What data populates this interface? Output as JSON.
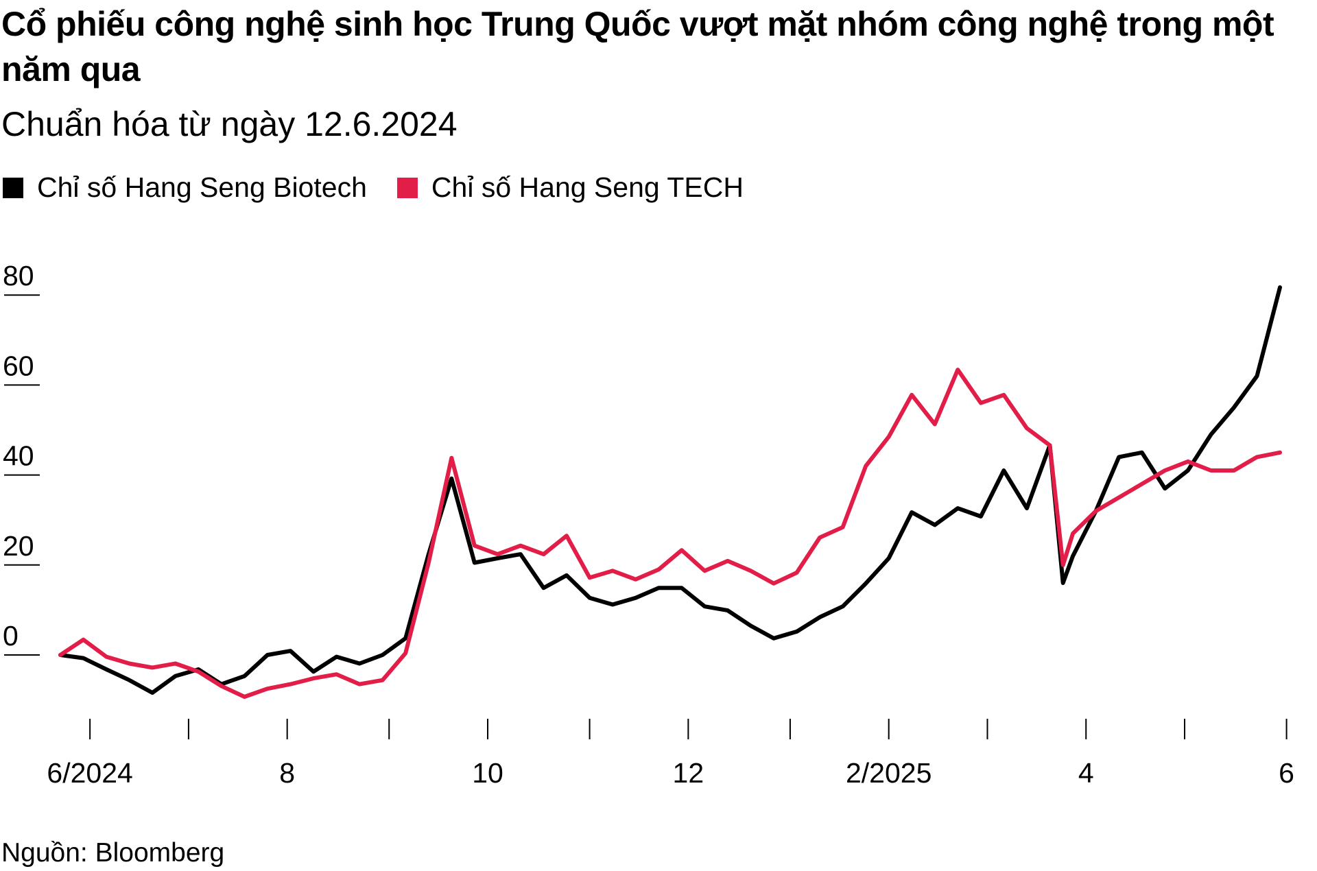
{
  "title": "Cổ phiếu công nghệ sinh học Trung Quốc vượt mặt nhóm công nghệ trong một năm qua",
  "subtitle": "Chuẩn hóa từ ngày 12.6.2024",
  "source": "Nguồn: Bloomberg",
  "chart_data": {
    "type": "line",
    "title": "Cổ phiếu công nghệ sinh học Trung Quốc vượt mặt nhóm công nghệ trong một năm qua",
    "subtitle": "Chuẩn hóa từ ngày 12.6.2024",
    "xlabel": "",
    "ylabel": "",
    "ylim": [
      -10,
      82
    ],
    "yticks": [
      0,
      20,
      40,
      60,
      80
    ],
    "xlim": [
      "2024-06-12",
      "2025-06-18"
    ],
    "xticks": [
      {
        "date": "2024-06-21",
        "label": "6/2024"
      },
      {
        "date": "2024-07-21",
        "label": ""
      },
      {
        "date": "2024-08-20",
        "label": "8"
      },
      {
        "date": "2024-09-20",
        "label": ""
      },
      {
        "date": "2024-10-20",
        "label": "10"
      },
      {
        "date": "2024-11-20",
        "label": ""
      },
      {
        "date": "2024-12-20",
        "label": "12"
      },
      {
        "date": "2025-01-20",
        "label": ""
      },
      {
        "date": "2025-02-19",
        "label": "2/2025"
      },
      {
        "date": "2025-03-21",
        "label": ""
      },
      {
        "date": "2025-04-20",
        "label": "4"
      },
      {
        "date": "2025-05-20",
        "label": ""
      },
      {
        "date": "2025-06-20",
        "label": "6"
      }
    ],
    "grid": false,
    "legend_position": "top-left",
    "x": [
      "2024-06-12",
      "2024-06-19",
      "2024-06-26",
      "2024-07-03",
      "2024-07-10",
      "2024-07-17",
      "2024-07-24",
      "2024-07-31",
      "2024-08-07",
      "2024-08-14",
      "2024-08-21",
      "2024-08-28",
      "2024-09-04",
      "2024-09-11",
      "2024-09-18",
      "2024-09-25",
      "2024-10-02",
      "2024-10-09",
      "2024-10-16",
      "2024-10-23",
      "2024-10-30",
      "2024-11-06",
      "2024-11-13",
      "2024-11-20",
      "2024-11-27",
      "2024-12-04",
      "2024-12-11",
      "2024-12-18",
      "2024-12-25",
      "2025-01-01",
      "2025-01-08",
      "2025-01-15",
      "2025-01-22",
      "2025-01-29",
      "2025-02-05",
      "2025-02-12",
      "2025-02-19",
      "2025-02-26",
      "2025-03-05",
      "2025-03-12",
      "2025-03-19",
      "2025-03-26",
      "2025-04-02",
      "2025-04-09",
      "2025-04-13",
      "2025-04-16",
      "2025-04-23",
      "2025-04-30",
      "2025-05-07",
      "2025-05-14",
      "2025-05-21",
      "2025-05-28",
      "2025-06-04",
      "2025-06-11",
      "2025-06-18"
    ],
    "series": [
      {
        "name": "Chỉ số Hang Seng Biotech",
        "color": "#000000",
        "values": [
          0,
          -0.7,
          -3.2,
          -5.6,
          -8.4,
          -4.7,
          -3.2,
          -6.5,
          -4.7,
          0,
          0.9,
          -3.7,
          -0.4,
          -1.9,
          0,
          3.7,
          22.4,
          39.2,
          20.5,
          21.5,
          22.4,
          14.9,
          17.7,
          12.7,
          11.2,
          12.7,
          14.9,
          14.9,
          10.8,
          9.9,
          6.5,
          3.7,
          5.2,
          8.4,
          10.8,
          15.9,
          21.5,
          31.7,
          28.9,
          32.6,
          30.8,
          41.0,
          32.6,
          46.6,
          16.0,
          22.0,
          32.0,
          44.0,
          45.0,
          37.0,
          41.0,
          49.0,
          55.0,
          62.0,
          81.7
        ]
      },
      {
        "name": "Chỉ số Hang Seng TECH",
        "color": "#E11D48",
        "values": [
          0,
          3.4,
          -0.4,
          -1.9,
          -2.8,
          -1.9,
          -3.7,
          -6.9,
          -9.3,
          -7.5,
          -6.5,
          -5.2,
          -4.3,
          -6.5,
          -5.6,
          0.4,
          20.5,
          43.8,
          24.3,
          22.4,
          24.3,
          22.4,
          26.5,
          17.2,
          18.7,
          16.8,
          19.0,
          23.3,
          18.7,
          20.9,
          18.7,
          15.9,
          18.3,
          26.1,
          28.4,
          42.0,
          48.5,
          57.8,
          51.3,
          63.4,
          56.0,
          57.8,
          50.4,
          46.6,
          20.0,
          27.0,
          32.0,
          35.0,
          38.0,
          41.0,
          43.0,
          41.0,
          41.0,
          44.0,
          45.0
        ]
      }
    ]
  }
}
